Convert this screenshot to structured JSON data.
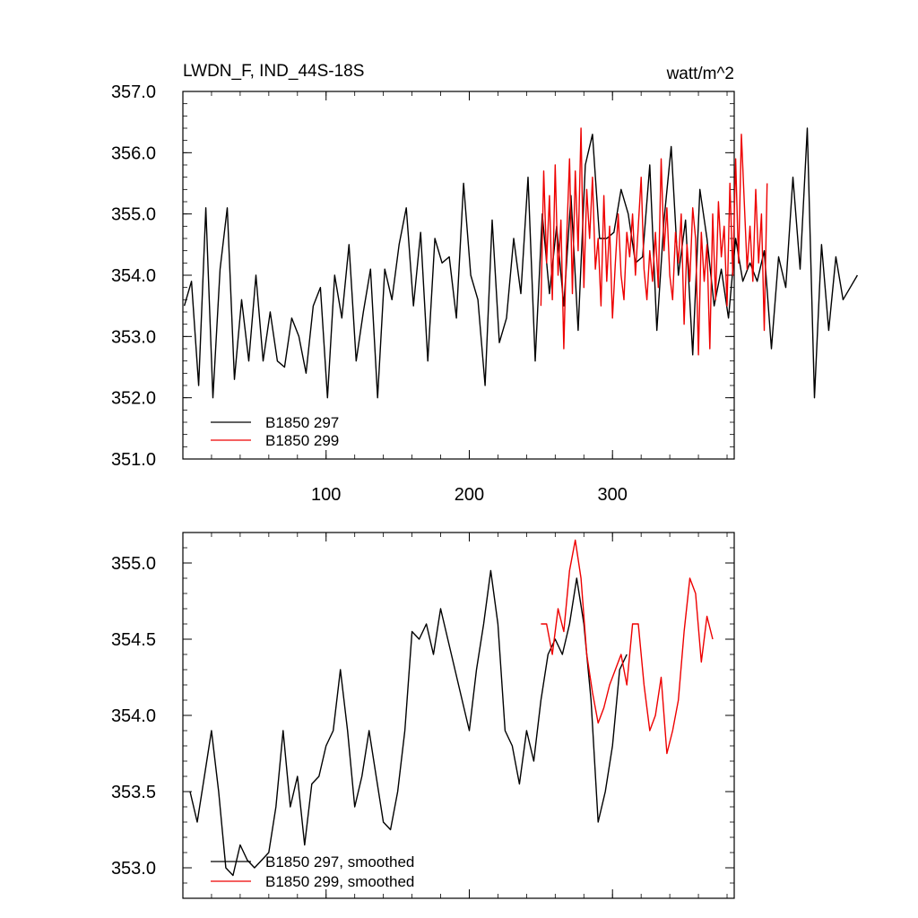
{
  "chart_data": [
    {
      "type": "line",
      "title": "LWDN_F, IND_44S-18S",
      "units": "watt/m^2",
      "xlabel": "",
      "ylabel": "",
      "xlim": [
        0,
        385
      ],
      "ylim": [
        351.0,
        357.0
      ],
      "xticks": [
        100,
        200,
        300
      ],
      "yticks": [
        351.0,
        352.0,
        353.0,
        354.0,
        355.0,
        356.0,
        357.0
      ],
      "ytick_labels": [
        "351.0",
        "352.0",
        "353.0",
        "354.0",
        "355.0",
        "356.0",
        "357.0"
      ],
      "xtick_labels": [
        "100",
        "200",
        "300"
      ],
      "legend": "bottom-left",
      "series": [
        {
          "name": "B1850 297",
          "color": "#000000",
          "x_start": 1,
          "x_step": 5,
          "values": [
            353.5,
            353.9,
            352.2,
            355.1,
            352.0,
            354.1,
            355.1,
            352.3,
            353.6,
            352.6,
            354.0,
            352.6,
            353.4,
            352.6,
            352.5,
            353.3,
            353.0,
            352.4,
            353.5,
            353.8,
            352.0,
            354.0,
            353.3,
            354.5,
            352.6,
            353.4,
            354.1,
            352.0,
            354.1,
            353.6,
            354.5,
            355.1,
            353.5,
            354.7,
            352.6,
            354.6,
            354.2,
            354.3,
            353.3,
            355.5,
            354.0,
            353.6,
            352.2,
            354.9,
            352.9,
            353.3,
            354.6,
            353.7,
            355.6,
            352.6,
            355.0,
            353.7,
            354.8,
            353.5,
            355.3,
            353.1,
            355.8,
            356.3,
            354.6,
            354.6,
            354.7,
            355.4,
            355.0,
            354.2,
            354.3,
            355.8,
            353.1,
            354.9,
            356.1,
            354.0,
            354.9,
            352.7,
            355.4,
            354.6,
            353.5,
            354.1,
            353.3,
            354.6,
            353.9,
            354.2,
            353.9,
            354.4,
            352.8,
            354.3,
            353.8,
            355.6,
            354.1,
            356.4,
            352.0,
            354.5,
            353.1,
            354.3,
            353.6,
            353.8,
            354.0
          ]
        },
        {
          "name": "B1850 299",
          "color": "#ee0000",
          "x_start": 250,
          "x_step": 2,
          "values": [
            353.5,
            355.7,
            354.2,
            355.3,
            353.6,
            355.8,
            354.0,
            354.9,
            352.8,
            354.6,
            355.9,
            353.7,
            355.7,
            354.4,
            356.4,
            353.8,
            355.4,
            354.6,
            355.6,
            354.1,
            354.6,
            353.5,
            355.3,
            353.9,
            354.8,
            353.3,
            354.2,
            355.0,
            354.0,
            353.6,
            354.7,
            354.3,
            355.0,
            354.0,
            354.8,
            355.6,
            354.1,
            353.6,
            354.4,
            353.9,
            354.7,
            353.8,
            355.9,
            354.4,
            355.1,
            354.0,
            353.6,
            354.7,
            354.2,
            355.0,
            353.2,
            354.5,
            353.9,
            355.1,
            354.6,
            352.7,
            354.7,
            353.9,
            354.5,
            352.8,
            355.0,
            353.6,
            355.2,
            354.3,
            354.8,
            353.5,
            355.5,
            354.0,
            355.9,
            354.2,
            356.3,
            355.2,
            354.1,
            354.8,
            353.9,
            355.4,
            354.2,
            355.0,
            353.1,
            355.5
          ]
        }
      ]
    },
    {
      "type": "line",
      "title": "",
      "units": "",
      "xlabel": "",
      "ylabel": "",
      "xlim": [
        0,
        385
      ],
      "ylim": [
        352.8,
        355.2
      ],
      "xticks": [
        100,
        200,
        300
      ],
      "yticks": [
        353.0,
        353.5,
        354.0,
        354.5,
        355.0
      ],
      "ytick_labels": [
        "353.0",
        "353.5",
        "354.0",
        "354.5",
        "355.0"
      ],
      "xtick_labels": [],
      "legend": "bottom-left",
      "series": [
        {
          "name": "B1850 297, smoothed",
          "color": "#000000",
          "x_start": 5,
          "x_step": 5,
          "values": [
            353.5,
            353.3,
            353.6,
            353.9,
            353.5,
            353.0,
            352.95,
            353.15,
            353.05,
            353.0,
            353.05,
            353.1,
            353.4,
            353.9,
            353.4,
            353.6,
            353.15,
            353.55,
            353.6,
            353.8,
            353.9,
            354.3,
            353.9,
            353.4,
            353.6,
            353.9,
            353.6,
            353.3,
            353.25,
            353.5,
            353.9,
            354.55,
            354.5,
            354.6,
            354.4,
            354.7,
            354.5,
            354.3,
            354.1,
            353.9,
            354.3,
            354.6,
            354.95,
            354.6,
            353.9,
            353.8,
            353.55,
            353.9,
            353.7,
            354.1,
            354.4,
            354.5,
            354.4,
            354.6,
            354.9,
            354.6,
            354.1,
            353.3,
            353.5,
            353.8,
            354.3,
            354.4
          ]
        },
        {
          "name": "B1850 299, smoothed",
          "color": "#ee0000",
          "x_start": 250,
          "x_step": 4,
          "values": [
            354.6,
            354.6,
            354.4,
            354.7,
            354.55,
            354.95,
            355.15,
            354.9,
            354.4,
            354.15,
            353.95,
            354.05,
            354.2,
            354.3,
            354.4,
            354.2,
            354.6,
            354.6,
            354.2,
            353.9,
            354.0,
            354.25,
            353.75,
            353.9,
            354.1,
            354.55,
            354.9,
            354.8,
            354.35,
            354.65,
            354.5
          ]
        }
      ]
    }
  ]
}
